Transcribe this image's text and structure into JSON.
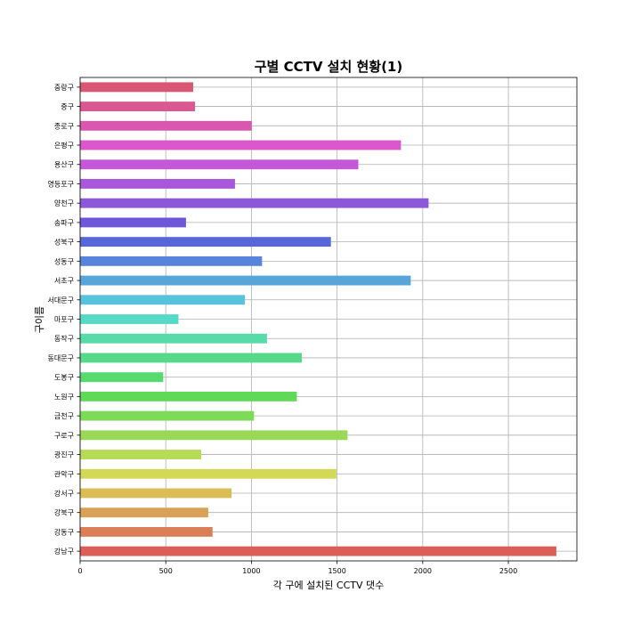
{
  "chart_data": {
    "type": "bar",
    "orientation": "horizontal",
    "title": "구별 CCTV 설치 현황(1)",
    "xlabel": "각 구에 설치된 CCTV 댓수",
    "ylabel": "구이름",
    "xlim": [
      0,
      2900
    ],
    "xticks": [
      0,
      500,
      1000,
      1500,
      2000,
      2500
    ],
    "grid": true,
    "categories": [
      "강남구",
      "강동구",
      "강북구",
      "강서구",
      "관악구",
      "광진구",
      "구로구",
      "금천구",
      "노원구",
      "도봉구",
      "동대문구",
      "동작구",
      "마포구",
      "서대문구",
      "서초구",
      "성동구",
      "성북구",
      "송파구",
      "양천구",
      "영등포구",
      "용산구",
      "은평구",
      "종로구",
      "중구",
      "중랑구"
    ],
    "values": [
      2780,
      773,
      748,
      884,
      1496,
      707,
      1561,
      1015,
      1265,
      485,
      1294,
      1091,
      574,
      962,
      1930,
      1062,
      1464,
      618,
      2034,
      904,
      1624,
      1873,
      1002,
      671,
      660
    ],
    "colors": [
      "#db5f57",
      "#db7f57",
      "#d9a157",
      "#dbbd57",
      "#d3d957",
      "#b6db57",
      "#99d957",
      "#7cdb57",
      "#5fd957",
      "#57db6f",
      "#57d98b",
      "#57dba8",
      "#57d9c8",
      "#57c2db",
      "#57a5d9",
      "#5785db",
      "#5766d9",
      "#6e57db",
      "#8c57d9",
      "#a957db",
      "#c557d9",
      "#db57cc",
      "#d957ae",
      "#db5790",
      "#d95772"
    ]
  }
}
